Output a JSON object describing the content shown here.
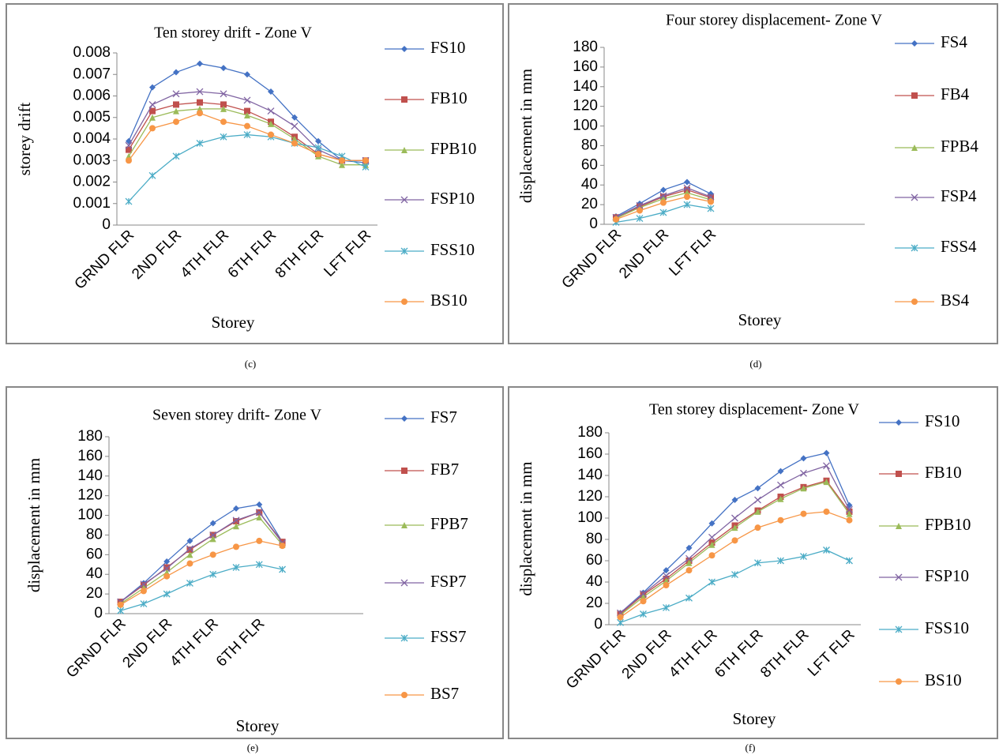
{
  "chart_data": [
    {
      "type": "line",
      "title": "Ten storey drift - Zone V",
      "caption": "(c)",
      "xlabel": "Storey",
      "ylabel": "storey drift",
      "categories": [
        "GRND FLR",
        null,
        "2ND FLR",
        null,
        "4TH FLR",
        null,
        "6TH FLR",
        null,
        "8TH FLR",
        null,
        "LFT FLR"
      ],
      "ylim": [
        0,
        0.008
      ],
      "yticks": [
        0,
        0.001,
        0.002,
        0.003,
        0.004,
        0.005,
        0.006,
        0.007,
        0.008
      ],
      "grid": false,
      "legend": "right",
      "series": [
        {
          "name": "FS10",
          "color": "#4472c4",
          "marker": "diamond",
          "values": [
            0.0039,
            0.0064,
            0.0071,
            0.0075,
            0.0073,
            0.007,
            0.0062,
            0.005,
            0.0039,
            0.003,
            0.0029
          ]
        },
        {
          "name": "FB10",
          "color": "#c0504d",
          "marker": "square",
          "values": [
            0.0035,
            0.0053,
            0.0056,
            0.0057,
            0.0056,
            0.0053,
            0.0048,
            0.0041,
            0.0033,
            0.003,
            0.003
          ]
        },
        {
          "name": "FPB10",
          "color": "#9bbb59",
          "marker": "triangle",
          "values": [
            0.0032,
            0.005,
            0.0053,
            0.0054,
            0.0054,
            0.0051,
            0.0047,
            0.004,
            0.0032,
            0.0028,
            0.0028
          ]
        },
        {
          "name": "FSP10",
          "color": "#8064a2",
          "marker": "x",
          "values": [
            0.0037,
            0.0056,
            0.0061,
            0.0062,
            0.0061,
            0.0058,
            0.0053,
            0.0046,
            0.0035,
            0.003,
            0.003
          ]
        },
        {
          "name": "FSS10",
          "color": "#4bacc6",
          "marker": "star",
          "values": [
            0.0011,
            0.0023,
            0.0032,
            0.0038,
            0.0041,
            0.0042,
            0.0041,
            0.0038,
            0.0036,
            0.0032,
            0.0027
          ]
        },
        {
          "name": "BS10",
          "color": "#f79646",
          "marker": "circle",
          "values": [
            0.003,
            0.0045,
            0.0048,
            0.0052,
            0.0048,
            0.0046,
            0.0042,
            0.0038,
            0.0033,
            0.003,
            0.003
          ]
        }
      ]
    },
    {
      "type": "line",
      "title": "Four storey displacement- Zone V",
      "caption": "(d)",
      "xlabel": "Storey",
      "ylabel": "displacement  in mm",
      "categories": [
        "GRND FLR",
        null,
        "2ND FLR",
        null,
        "LFT FLR",
        null,
        null,
        null,
        null,
        null,
        null
      ],
      "ylim": [
        0,
        180
      ],
      "yticks": [
        0,
        20,
        40,
        60,
        80,
        100,
        120,
        140,
        160,
        180
      ],
      "grid": false,
      "legend": "right",
      "series": [
        {
          "name": "FS4",
          "color": "#4472c4",
          "marker": "diamond",
          "values": [
            8,
            21,
            35,
            43,
            31,
            null,
            null,
            null,
            null,
            null,
            null
          ]
        },
        {
          "name": "FB4",
          "color": "#c0504d",
          "marker": "square",
          "values": [
            7,
            18,
            28,
            35,
            27,
            null,
            null,
            null,
            null,
            null,
            null
          ]
        },
        {
          "name": "FPB4",
          "color": "#9bbb59",
          "marker": "triangle",
          "values": [
            6,
            17,
            26,
            32,
            25,
            null,
            null,
            null,
            null,
            null,
            null
          ]
        },
        {
          "name": "FSP4",
          "color": "#8064a2",
          "marker": "x",
          "values": [
            7,
            19,
            29,
            37,
            28,
            null,
            null,
            null,
            null,
            null,
            null
          ]
        },
        {
          "name": "FSS4",
          "color": "#4bacc6",
          "marker": "star",
          "values": [
            2,
            6,
            12,
            20,
            16,
            null,
            null,
            null,
            null,
            null,
            null
          ]
        },
        {
          "name": "BS4",
          "color": "#f79646",
          "marker": "circle",
          "values": [
            5,
            14,
            22,
            28,
            23,
            null,
            null,
            null,
            null,
            null,
            null
          ]
        }
      ]
    },
    {
      "type": "line",
      "title": "Seven storey drift- Zone V",
      "caption": "(e)",
      "xlabel": "Storey",
      "ylabel": "displacement in mm",
      "categories": [
        "GRND FLR",
        null,
        "2ND FLR",
        null,
        "4TH FLR",
        null,
        "6TH FLR",
        null,
        null,
        null,
        null
      ],
      "ylim": [
        0,
        180
      ],
      "yticks": [
        0,
        20,
        40,
        60,
        80,
        100,
        120,
        140,
        160,
        180
      ],
      "grid": false,
      "legend": "right",
      "series": [
        {
          "name": "FS7",
          "color": "#4472c4",
          "marker": "diamond",
          "values": [
            12,
            31,
            53,
            74,
            92,
            107,
            111,
            73,
            null,
            null,
            null
          ]
        },
        {
          "name": "FB7",
          "color": "#c0504d",
          "marker": "square",
          "values": [
            12,
            29,
            47,
            65,
            80,
            94,
            103,
            73,
            null,
            null,
            null
          ]
        },
        {
          "name": "FPB7",
          "color": "#9bbb59",
          "marker": "triangle",
          "values": [
            10,
            26,
            42,
            60,
            76,
            89,
            98,
            70,
            null,
            null,
            null
          ]
        },
        {
          "name": "FSP7",
          "color": "#8064a2",
          "marker": "x",
          "values": [
            12,
            30,
            46,
            66,
            80,
            95,
            103,
            72,
            null,
            null,
            null
          ]
        },
        {
          "name": "FSS7",
          "color": "#4bacc6",
          "marker": "star",
          "values": [
            3,
            10,
            20,
            31,
            40,
            47,
            50,
            45,
            null,
            null,
            null
          ]
        },
        {
          "name": "BS7",
          "color": "#f79646",
          "marker": "circle",
          "values": [
            9,
            23,
            38,
            51,
            60,
            68,
            74,
            69,
            null,
            null,
            null
          ]
        }
      ]
    },
    {
      "type": "line",
      "title": "Ten storey displacement- Zone V",
      "caption": "(f)",
      "xlabel": "Storey",
      "ylabel": "displacement in mm",
      "categories": [
        "GRND FLR",
        null,
        "2ND FLR",
        null,
        "4TH FLR",
        null,
        "6TH FLR",
        null,
        "8TH FLR",
        null,
        "LFT FLR"
      ],
      "ylim": [
        0,
        180
      ],
      "yticks": [
        0,
        20,
        40,
        60,
        80,
        100,
        120,
        140,
        160,
        180
      ],
      "grid": false,
      "legend": "right",
      "series": [
        {
          "name": "FS10",
          "color": "#4472c4",
          "marker": "diamond",
          "values": [
            11,
            30,
            51,
            72,
            95,
            117,
            128,
            144,
            156,
            161,
            112
          ]
        },
        {
          "name": "FB10",
          "color": "#c0504d",
          "marker": "square",
          "values": [
            10,
            28,
            43,
            60,
            77,
            93,
            107,
            120,
            129,
            135,
            106
          ]
        },
        {
          "name": "FPB10",
          "color": "#9bbb59",
          "marker": "triangle",
          "values": [
            9,
            26,
            41,
            58,
            75,
            91,
            106,
            118,
            128,
            134,
            104
          ]
        },
        {
          "name": "FSP10",
          "color": "#8064a2",
          "marker": "x",
          "values": [
            11,
            29,
            46,
            62,
            82,
            100,
            117,
            131,
            142,
            149,
            108
          ]
        },
        {
          "name": "FSS10",
          "color": "#4bacc6",
          "marker": "star",
          "values": [
            2,
            10,
            16,
            25,
            40,
            47,
            58,
            60,
            64,
            70,
            60
          ]
        },
        {
          "name": "BS10",
          "color": "#f79646",
          "marker": "circle",
          "values": [
            7,
            22,
            37,
            51,
            65,
            79,
            91,
            98,
            104,
            106,
            98
          ]
        }
      ]
    }
  ]
}
